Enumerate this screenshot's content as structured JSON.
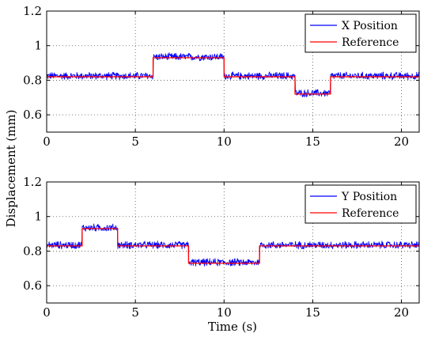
{
  "figure": {
    "ylabel": "Displacement (mm)",
    "xlabel": "Time (s)"
  },
  "chart_data": [
    {
      "type": "line",
      "xlim": [
        0,
        21
      ],
      "ylim": [
        0.5,
        1.2
      ],
      "xticks": [
        "0",
        "5",
        "10",
        "15",
        "20"
      ],
      "yticks": [
        "0.6",
        "0.8",
        "1",
        "1.2"
      ],
      "grid": true,
      "legend_position": "top-right",
      "series": [
        {
          "name": "X Position",
          "color": "#0000ff",
          "noise_amplitude": 0.025,
          "mean_offset": 0.005,
          "segments": [
            [
              0,
              6,
              0.82
            ],
            [
              6,
              10,
              0.93
            ],
            [
              10,
              14,
              0.82
            ],
            [
              14,
              16,
              0.72
            ],
            [
              16,
              21,
              0.82
            ]
          ]
        },
        {
          "name": "Reference",
          "color": "#ff0000",
          "segments": [
            [
              0,
              6,
              0.82
            ],
            [
              6,
              10,
              0.93
            ],
            [
              10,
              14,
              0.82
            ],
            [
              14,
              16,
              0.72
            ],
            [
              16,
              21,
              0.82
            ]
          ]
        }
      ]
    },
    {
      "type": "line",
      "xlim": [
        0,
        21
      ],
      "ylim": [
        0.5,
        1.2
      ],
      "xticks": [
        "0",
        "5",
        "10",
        "15",
        "20"
      ],
      "yticks": [
        "0.6",
        "0.8",
        "1",
        "1.2"
      ],
      "grid": true,
      "legend_position": "top-right",
      "series": [
        {
          "name": "Y Position",
          "color": "#0000ff",
          "noise_amplitude": 0.025,
          "mean_offset": 0.005,
          "segments": [
            [
              0,
              2,
              0.83
            ],
            [
              2,
              4,
              0.93
            ],
            [
              4,
              8,
              0.83
            ],
            [
              8,
              12,
              0.73
            ],
            [
              12,
              21,
              0.83
            ]
          ]
        },
        {
          "name": "Reference",
          "color": "#ff0000",
          "segments": [
            [
              0,
              2,
              0.83
            ],
            [
              2,
              4,
              0.93
            ],
            [
              4,
              8,
              0.83
            ],
            [
              8,
              12,
              0.73
            ],
            [
              12,
              21,
              0.83
            ]
          ]
        }
      ]
    }
  ]
}
